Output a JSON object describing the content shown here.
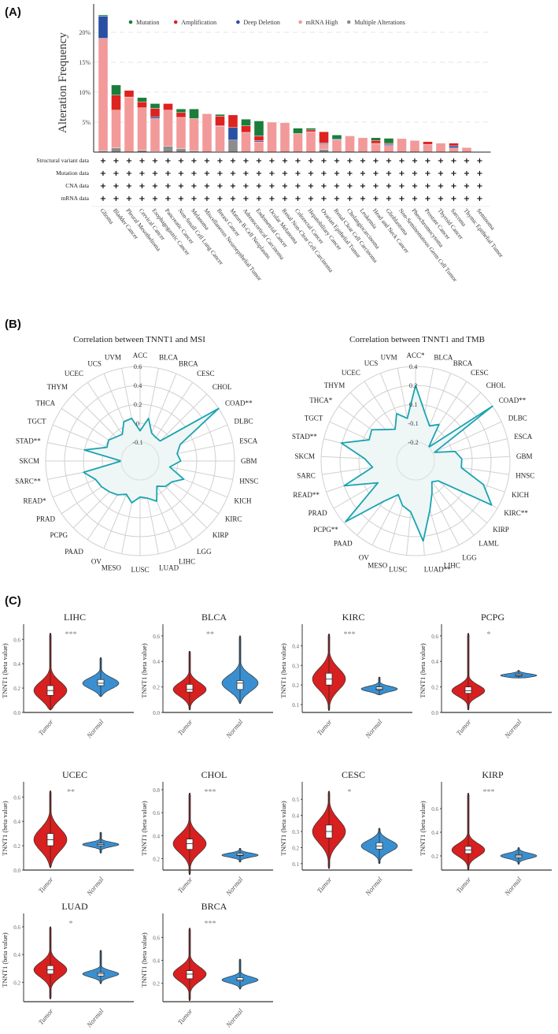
{
  "panels": {
    "a_label": "(A)",
    "b_label": "(B)",
    "c_label": "(C)"
  },
  "colors": {
    "mutation": "#1b7d3a",
    "amplification": "#dd2220",
    "deep_deletion": "#2a4fa3",
    "mrna_high": "#f29a9a",
    "multiple": "#8c8c8c",
    "radar_line": "#1aa3b0",
    "radar_fill": "#eef6f6",
    "tumor": "#d7201f",
    "normal": "#3a8fd0"
  },
  "chart_data": [
    {
      "type": "bar",
      "stacked": true,
      "ylabel": "Alteration Frequency",
      "ylim": [
        0,
        23
      ],
      "yticks": [
        "5%",
        "10%",
        "15%",
        "20%"
      ],
      "ytick_values": [
        5,
        10,
        15,
        20
      ],
      "grid": "dashed horizontal",
      "legend_placement": "top",
      "categories": [
        "Glioma",
        "Bladder Cancer",
        "Pleural Mesothelioma",
        "Cervical Cancer",
        "Esophagogastric Cancer",
        "Pancreatic Cancer",
        "Non-Small Cell Lung Cancer",
        "Melanoma",
        "Miscellaneous Neuroepithelial Tumor",
        "Breast Cancer",
        "Mature B-Cell Neoplasms",
        "Adrenocortical Carcinoma",
        "Endometrial Cancer",
        "Ocular Melanoma",
        "Renal Non-Clear Cell Carcinoma",
        "Colorectal Cancer",
        "Hepatobiliary Cancer",
        "Ovarian Epithelial Tumor",
        "Renal Clear Cell Carcinoma",
        "Cholangiocarcinoma",
        "Leukemia",
        "Head and Neck Cancer",
        "Glioblastoma",
        "Non-Seminomatous Germ Cell Tumor",
        "Pheochromocytoma",
        "Prostate Cancer",
        "Thyroid Cancer",
        "Sarcoma",
        "Thymic Epithelial Tumor",
        "Seminoma"
      ],
      "series": [
        {
          "name": "Multiple Alterations",
          "color_key": "multiple",
          "values": [
            0.2,
            0.7,
            0,
            0.3,
            0.1,
            1.0,
            0.6,
            0.2,
            0,
            0.1,
            2.0,
            0,
            0,
            0,
            0,
            0,
            0,
            0.45,
            0,
            0,
            0,
            0,
            0,
            0,
            0,
            0,
            0,
            0,
            0,
            0
          ]
        },
        {
          "name": "mRNA High",
          "color_key": "mrna_high",
          "values": [
            18.8,
            6.3,
            9.2,
            7.1,
            5.5,
            6.0,
            5.2,
            5.4,
            6.4,
            4.2,
            0,
            3.3,
            1.7,
            5.0,
            4.9,
            3.1,
            3.4,
            0.9,
            2.05,
            2.7,
            2.4,
            1.45,
            1.1,
            2.25,
            1.95,
            1.3,
            1.5,
            0.7,
            0.75,
            0
          ]
        },
        {
          "name": "Deep Deletion",
          "color_key": "deep_deletion",
          "values": [
            3.7,
            0,
            0,
            0,
            0.3,
            0,
            0,
            0,
            0,
            0.1,
            2.1,
            0,
            0.2,
            0,
            0,
            0,
            0,
            0.15,
            0.15,
            0,
            0,
            0,
            0.2,
            0,
            0,
            0,
            0,
            0.35,
            0,
            0
          ]
        },
        {
          "name": "Amplification",
          "color_key": "amplification",
          "values": [
            0,
            2.5,
            1.1,
            1.0,
            1.4,
            1.1,
            0.8,
            0,
            0,
            1.6,
            2.1,
            1.1,
            0.8,
            0,
            0,
            0,
            0.3,
            1.9,
            0,
            0,
            0,
            0.5,
            0.15,
            0,
            0,
            0.45,
            0,
            0.45,
            0,
            0
          ]
        },
        {
          "name": "Mutation",
          "color_key": "mutation",
          "values": [
            0.2,
            1.7,
            0,
            0.7,
            0.8,
            0,
            0.6,
            1.6,
            0,
            0.3,
            0,
            1.1,
            2.5,
            0,
            0,
            0.9,
            0.3,
            0,
            0.65,
            0,
            0,
            0.45,
            0.85,
            0,
            0,
            0,
            0,
            0,
            0,
            0
          ]
        }
      ],
      "legend_order": [
        "Mutation",
        "Amplification",
        "Deep Deletion",
        "mRNA High",
        "Multiple Alterations"
      ],
      "profile_rows": [
        "Structural variant data",
        "Mutation data",
        "CNA data",
        "mRNA data"
      ],
      "profile_marker": "+"
    },
    {
      "type": "radar",
      "title": "Correlation between TNNT1 and MSI",
      "ring_ticks": [
        -0.1,
        0,
        0.2,
        0.4,
        0.6
      ],
      "ring_labels": [
        "-0.1",
        "0",
        "0.2",
        "0.4",
        "0.6"
      ],
      "inner_value": -0.2,
      "axes": [
        "ACC",
        "BLCA",
        "BRCA",
        "CESC",
        "CHOL",
        "COAD**",
        "DLBC",
        "ESCA",
        "GBM",
        "HNSC",
        "KICH",
        "KIRC",
        "KIRP",
        "LGG",
        "LIHC",
        "LUAD",
        "LUSC",
        "MESO",
        "OV",
        "PAAD",
        "PCPG",
        "PRAD",
        "READ*",
        "SARC**",
        "SKCM",
        "STAD**",
        "TGCT",
        "THCA",
        "THYM",
        "UCEC",
        "UCS",
        "UVM"
      ],
      "values": [
        -0.04,
        0.06,
        -0.04,
        -0.05,
        -0.05,
        0.6,
        0.06,
        0.0,
        0.03,
        -0.04,
        0.1,
        0.0,
        -0.01,
        -0.04,
        0.06,
        0.0,
        -0.01,
        0.05,
        -0.01,
        0.03,
        0.06,
        0.09,
        0.11,
        0.21,
        -0.1,
        0.2,
        -0.01,
        0.0,
        -0.02,
        -0.03,
        0.05,
        0.06
      ]
    },
    {
      "type": "radar",
      "title": "Correlation between TNNT1 and TMB",
      "ring_ticks": [
        -0.2,
        -0.1,
        0.1,
        0.2,
        0.4
      ],
      "ring_labels": [
        "-0.2",
        "-0.1",
        "0.1",
        "0.2",
        "0.4"
      ],
      "inner_value": -0.3,
      "axes": [
        "ACC*",
        "BLCA",
        "BRCA",
        "CESC",
        "CHOL",
        "COAD**",
        "DLBC",
        "ESCA",
        "GBM",
        "HNSC",
        "KICH",
        "KIRC**",
        "KIRP",
        "LAML",
        "LGG",
        "LIHC",
        "LUAD**",
        "LUSC",
        "MESO",
        "OV",
        "PAAD",
        "PCPG**",
        "PRAD",
        "READ**",
        "SARC",
        "SKCM",
        "STAD**",
        "TGCT",
        "THCA*",
        "THYM",
        "UCEC",
        "UCS",
        "UVM"
      ],
      "values": [
        0.2,
        0.02,
        -0.1,
        -0.04,
        -0.2,
        0.4,
        -0.19,
        -0.07,
        -0.01,
        -0.01,
        0.18,
        0.33,
        -0.14,
        -0.16,
        -0.11,
        0.04,
        0.25,
        0.04,
        -0.01,
        -0.1,
        0.04,
        0.38,
        -0.04,
        0.2,
        -0.04,
        0.04,
        0.21,
        0.04,
        0.07,
        -0.04,
        -0.1,
        0.04,
        -0.04
      ]
    },
    {
      "type": "violin",
      "ylabel": "TNNT1 (beta  value)",
      "groups": [
        "Tumor",
        "Normal"
      ],
      "panels": [
        {
          "title": "LIHC",
          "sig": "***",
          "ylim": [
            0,
            0.66
          ],
          "yticks": [
            0,
            0.2,
            0.4,
            0.6
          ],
          "tick_labels": [
            "0.0",
            "0.2",
            "0.4",
            "0.6"
          ],
          "stats": [
            {
              "median": 0.18,
              "q1": 0.14,
              "q3": 0.22,
              "min": 0.02,
              "max": 0.65
            },
            {
              "median": 0.24,
              "q1": 0.22,
              "q3": 0.27,
              "min": 0.13,
              "max": 0.45
            }
          ]
        },
        {
          "title": "BLCA",
          "sig": "**",
          "ylim": [
            0,
            0.63
          ],
          "yticks": [
            0,
            0.2,
            0.4,
            0.6
          ],
          "tick_labels": [
            "0.0",
            "0.2",
            "0.4",
            "0.6"
          ],
          "stats": [
            {
              "median": 0.18,
              "q1": 0.16,
              "q3": 0.22,
              "min": 0.02,
              "max": 0.48
            },
            {
              "median": 0.23,
              "q1": 0.18,
              "q3": 0.25,
              "min": 0.07,
              "max": 0.6
            }
          ]
        },
        {
          "title": "KIRC",
          "sig": "***",
          "ylim": [
            0.06,
            0.47
          ],
          "yticks": [
            0.1,
            0.2,
            0.3,
            0.4
          ],
          "tick_labels": [
            "0.1",
            "0.2",
            "0.3",
            "0.4"
          ],
          "stats": [
            {
              "median": 0.23,
              "q1": 0.2,
              "q3": 0.26,
              "min": 0.07,
              "max": 0.46
            },
            {
              "median": 0.18,
              "q1": 0.175,
              "q3": 0.19,
              "min": 0.15,
              "max": 0.24
            }
          ]
        },
        {
          "title": "PCPG",
          "sig": "*",
          "ylim": [
            0,
            0.63
          ],
          "yticks": [
            0,
            0.2,
            0.4,
            0.6
          ],
          "tick_labels": [
            "0.0",
            "0.2",
            "0.4",
            "0.6"
          ],
          "stats": [
            {
              "median": 0.17,
              "q1": 0.15,
              "q3": 0.2,
              "min": 0.02,
              "max": 0.62
            },
            {
              "median": 0.29,
              "q1": 0.285,
              "q3": 0.3,
              "min": 0.27,
              "max": 0.33
            }
          ]
        },
        {
          "title": "UCEC",
          "sig": "**",
          "ylim": [
            0,
            0.66
          ],
          "yticks": [
            0,
            0.2,
            0.4,
            0.6
          ],
          "tick_labels": [
            "0.0",
            "0.2",
            "0.4",
            "0.6"
          ],
          "stats": [
            {
              "median": 0.25,
              "q1": 0.2,
              "q3": 0.3,
              "min": 0.02,
              "max": 0.65
            },
            {
              "median": 0.21,
              "q1": 0.2,
              "q3": 0.22,
              "min": 0.14,
              "max": 0.31
            }
          ]
        },
        {
          "title": "CHOL",
          "sig": "***",
          "ylim": [
            0.1,
            0.8
          ],
          "yticks": [
            0.2,
            0.4,
            0.6,
            0.8
          ],
          "tick_labels": [
            "0.2",
            "0.4",
            "0.6",
            "0.8"
          ],
          "stats": [
            {
              "median": 0.33,
              "q1": 0.28,
              "q3": 0.37,
              "min": 0.06,
              "max": 0.77
            },
            {
              "median": 0.23,
              "q1": 0.225,
              "q3": 0.245,
              "min": 0.17,
              "max": 0.29
            }
          ]
        },
        {
          "title": "CESC",
          "sig": "*",
          "ylim": [
            0.06,
            0.56
          ],
          "yticks": [
            0.1,
            0.2,
            0.3,
            0.4,
            0.5
          ],
          "tick_labels": [
            "0.1",
            "0.2",
            "0.3",
            "0.4",
            "0.5"
          ],
          "stats": [
            {
              "median": 0.3,
              "q1": 0.26,
              "q3": 0.34,
              "min": 0.07,
              "max": 0.55
            },
            {
              "median": 0.21,
              "q1": 0.19,
              "q3": 0.23,
              "min": 0.1,
              "max": 0.32
            }
          ]
        },
        {
          "title": "KIRP",
          "sig": "***",
          "ylim": [
            0.08,
            0.76
          ],
          "yticks": [
            0.2,
            0.4,
            0.6
          ],
          "tick_labels": [
            "0.2",
            "0.4",
            "0.6"
          ],
          "stats": [
            {
              "median": 0.25,
              "q1": 0.22,
              "q3": 0.28,
              "min": 0.08,
              "max": 0.73
            },
            {
              "median": 0.2,
              "q1": 0.185,
              "q3": 0.21,
              "min": 0.13,
              "max": 0.27
            }
          ]
        },
        {
          "title": "LUAD",
          "sig": "*",
          "ylim": [
            0.06,
            0.64
          ],
          "yticks": [
            0.2,
            0.4,
            0.6
          ],
          "tick_labels": [
            "0.2",
            "0.4",
            "0.6"
          ],
          "stats": [
            {
              "median": 0.29,
              "q1": 0.26,
              "q3": 0.32,
              "min": 0.08,
              "max": 0.6
            },
            {
              "median": 0.26,
              "q1": 0.245,
              "q3": 0.27,
              "min": 0.19,
              "max": 0.43
            }
          ]
        },
        {
          "title": "BRCA",
          "sig": "***",
          "ylim": [
            0.04,
            0.74
          ],
          "yticks": [
            0.2,
            0.4,
            0.6
          ],
          "tick_labels": [
            "0.2",
            "0.4",
            "0.6"
          ],
          "stats": [
            {
              "median": 0.28,
              "q1": 0.24,
              "q3": 0.31,
              "min": 0.05,
              "max": 0.68
            },
            {
              "median": 0.23,
              "q1": 0.22,
              "q3": 0.25,
              "min": 0.15,
              "max": 0.41
            }
          ]
        }
      ]
    }
  ]
}
